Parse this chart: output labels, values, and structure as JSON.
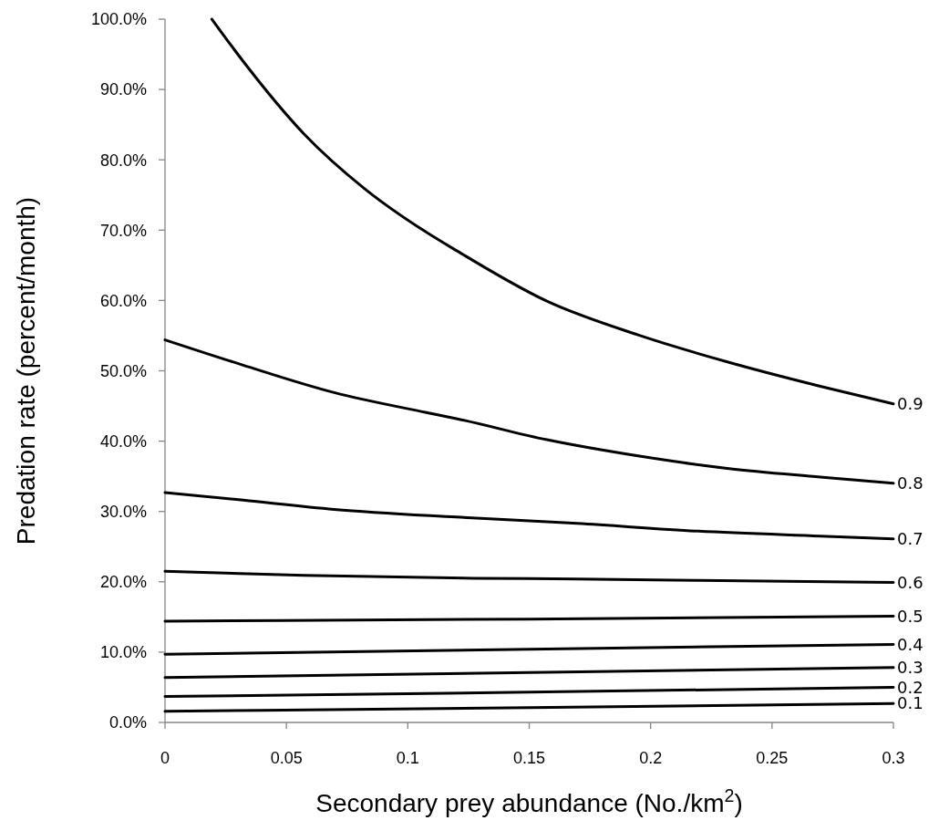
{
  "chart_data": {
    "type": "line",
    "xlabel": "Secondary prey abundance (No./km$^{2}$)",
    "ylabel": "Predation rate (percent/month)",
    "xlim": [
      0,
      0.3
    ],
    "xticks": [
      0,
      0.05,
      0.1,
      0.15,
      0.2,
      0.25,
      0.3
    ],
    "ylim": [
      0,
      100
    ],
    "yticks": [
      {
        "value": 0,
        "label": "0.0%"
      },
      {
        "value": 10,
        "label": "10.0%"
      },
      {
        "value": 20,
        "label": "20.0%"
      },
      {
        "value": 30,
        "label": "30.0%"
      },
      {
        "value": 40,
        "label": "40.0%"
      },
      {
        "value": 50,
        "label": "50.0%"
      },
      {
        "value": 60,
        "label": "60.0%"
      },
      {
        "value": 70,
        "label": "70.0%"
      },
      {
        "value": 80,
        "label": "80.0%"
      },
      {
        "value": 90,
        "label": "90.0%"
      },
      {
        "value": 100,
        "label": "100.0%"
      }
    ],
    "grid": false,
    "marker": "none",
    "line_style": "solid",
    "series": [
      {
        "name": "0.9",
        "color": "#000000",
        "x": [
          0.0193,
          0.0322,
          0.0572,
          0.0822,
          0.1072,
          0.12,
          0.1573,
          0.1948,
          0.2323,
          0.2699,
          0.3
        ],
        "values": [
          100,
          94.0,
          83.7,
          75.9,
          69.8,
          67.1,
          59.9,
          55.1,
          51.2,
          47.8,
          45.3
        ]
      },
      {
        "name": "0.8",
        "color": "#000000",
        "x": [
          0,
          0.0322,
          0.0697,
          0.1072,
          0.12,
          0.1573,
          0.1948,
          0.2323,
          0.2699,
          0.3
        ],
        "values": [
          54.4,
          50.8,
          46.9,
          44.1,
          43.2,
          40.2,
          37.9,
          36.1,
          34.9,
          34.0
        ]
      },
      {
        "name": "0.7",
        "color": "#000000",
        "x": [
          0,
          0.0322,
          0.0697,
          0.12,
          0.1698,
          0.2198,
          0.2699,
          0.3
        ],
        "values": [
          32.7,
          31.6,
          30.3,
          29.2,
          28.3,
          27.2,
          26.5,
          26.1
        ]
      },
      {
        "name": "0.6",
        "color": "#000000",
        "x": [
          0,
          0.0572,
          0.1273,
          0.1698,
          0.2198,
          0.3
        ],
        "values": [
          21.5,
          20.9,
          20.5,
          20.4,
          20.2,
          19.9
        ]
      },
      {
        "name": "0.5",
        "color": "#000000",
        "x": [
          0,
          0.15,
          0.3
        ],
        "values": [
          14.4,
          14.7,
          15.1
        ]
      },
      {
        "name": "0.4",
        "color": "#000000",
        "x": [
          0,
          0.15,
          0.3
        ],
        "values": [
          9.7,
          10.4,
          11.1
        ]
      },
      {
        "name": "0.3",
        "color": "#000000",
        "x": [
          0,
          0.15,
          0.3
        ],
        "values": [
          6.4,
          7.1,
          7.8
        ]
      },
      {
        "name": "0.2",
        "color": "#000000",
        "x": [
          0,
          0.15,
          0.3
        ],
        "values": [
          3.7,
          4.3,
          5.0
        ]
      },
      {
        "name": "0.1",
        "color": "#000000",
        "x": [
          0,
          0.15,
          0.3
        ],
        "values": [
          1.6,
          2.1,
          2.7
        ]
      }
    ]
  }
}
